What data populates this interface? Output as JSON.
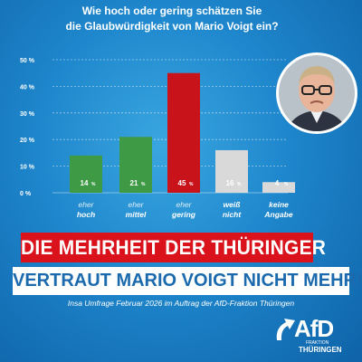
{
  "question": {
    "line1": "Wie hoch oder gering schätzen Sie",
    "line2": "die Glaubwürdigkeit von Mario Voigt ein?"
  },
  "chart_data": {
    "type": "bar",
    "categories": [
      {
        "line1": "eher",
        "line2": "hoch"
      },
      {
        "line1": "eher",
        "line2": "mittel"
      },
      {
        "line1": "eher",
        "line2": "gering"
      },
      {
        "line1": "weiß",
        "line2": "nicht"
      },
      {
        "line1": "keine",
        "line2": "Angabe"
      }
    ],
    "values": [
      14,
      21,
      45,
      16,
      4
    ],
    "value_labels": [
      "14",
      "21",
      "45",
      "16",
      "4"
    ],
    "value_unit": "%",
    "ylim": [
      0,
      50
    ],
    "yticks": [
      0,
      10,
      20,
      30,
      40,
      50
    ],
    "ytick_labels": [
      "0 %",
      "10 %",
      "20 %",
      "30 %",
      "40 %",
      "50 %"
    ],
    "bar_colors": [
      "#3f9a46",
      "#3f9a46",
      "#c9131b",
      "#d9d9d9",
      "#d9d9d9"
    ],
    "grid": true,
    "title": "Wie hoch oder gering schätzen Sie die Glaubwürdigkeit von Mario Voigt ein?"
  },
  "banner": {
    "line1": "DIE MEHRHEIT DER THÜRINGER",
    "line2": "VERTRAUT MARIO VOIGT NICHT MEHR!"
  },
  "source": "Insa Umfrage Februar 2026 im Auftrag der AfD-Fraktion Thüringen",
  "logo": {
    "mark": "AfD",
    "sub1": "FRAKTION",
    "sub2": "THÜRINGEN",
    "icon": "afd-arrow-icon"
  },
  "portrait": {
    "icon": "person-portrait-icon"
  },
  "colors": {
    "background": "#1e86cc",
    "banner_red": "#d9121b",
    "banner_blue_text": "#1a6aad",
    "bar_green": "#3f9a46",
    "bar_red": "#c9131b",
    "bar_grey": "#d9d9d9"
  }
}
